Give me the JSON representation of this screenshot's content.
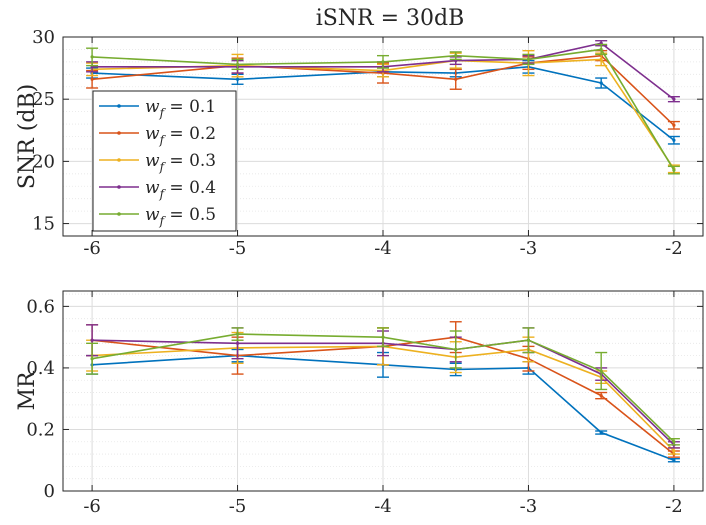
{
  "title": "iSNR = 30dB",
  "colors": [
    "#0072BD",
    "#D95319",
    "#EDB120",
    "#7E2F8E",
    "#77AC30"
  ],
  "chart_data": [
    {
      "type": "line",
      "ylabel": "SNR (dB)",
      "xlabel": "",
      "x": [
        -6,
        -5,
        -4,
        -3.5,
        -3,
        -2.5,
        -2
      ],
      "xticks": [
        -6,
        -5,
        -4,
        -3,
        -2
      ],
      "xtick_labels": [
        "-6",
        "-5",
        "-4",
        "-3",
        "-2"
      ],
      "xlim": [
        -6.2,
        -1.8
      ],
      "ylim": [
        14,
        30
      ],
      "yticks": [
        15,
        20,
        25,
        30
      ],
      "ytick_labels": [
        "15",
        "20",
        "25",
        "30"
      ],
      "grid": true,
      "legend_position": "lower-left",
      "series": [
        {
          "name": "w_f = 0.1",
          "values": [
            27.1,
            26.6,
            27.2,
            27.1,
            27.6,
            26.3,
            21.7
          ],
          "errors": [
            0.4,
            0.4,
            0.4,
            0.3,
            0.5,
            0.4,
            0.3
          ]
        },
        {
          "name": "w_f = 0.2",
          "values": [
            26.6,
            27.7,
            27.1,
            26.6,
            27.9,
            28.5,
            22.9
          ],
          "errors": [
            0.7,
            0.6,
            0.8,
            0.8,
            0.5,
            0.4,
            0.3
          ]
        },
        {
          "name": "w_f = 0.3",
          "values": [
            27.4,
            27.7,
            27.3,
            28.1,
            27.9,
            28.2,
            19.4
          ],
          "errors": [
            0.5,
            0.9,
            0.5,
            0.6,
            1.0,
            0.5,
            0.3
          ]
        },
        {
          "name": "w_f = 0.4",
          "values": [
            27.6,
            27.6,
            27.6,
            28.1,
            28.2,
            29.5,
            25.0
          ],
          "errors": [
            0.4,
            0.5,
            0.4,
            0.3,
            0.3,
            0.2,
            0.2
          ]
        },
        {
          "name": "w_f = 0.5",
          "values": [
            28.4,
            27.8,
            28.0,
            28.5,
            28.2,
            29.0,
            19.3
          ],
          "errors": [
            0.7,
            0.4,
            0.5,
            0.3,
            0.4,
            0.4,
            0.3
          ]
        }
      ],
      "legend": [
        "w",
        "f",
        "= 0.1",
        "= 0.2",
        "= 0.3",
        "= 0.4",
        "= 0.5"
      ]
    },
    {
      "type": "line",
      "ylabel": "MR",
      "xlabel": "",
      "x": [
        -6,
        -5,
        -4,
        -3.5,
        -3,
        -2.5,
        -2
      ],
      "xticks": [
        -6,
        -5,
        -4,
        -3,
        -2
      ],
      "xtick_labels": [
        "-6",
        "-5",
        "-4",
        "-3",
        "-2"
      ],
      "xlim": [
        -6.2,
        -1.8
      ],
      "ylim": [
        0,
        0.65
      ],
      "yticks": [
        0,
        0.2,
        0.4,
        0.6
      ],
      "ytick_labels": [
        "0",
        "0.2",
        "0.4",
        "0.6"
      ],
      "grid": true,
      "series": [
        {
          "name": "w_f = 0.1",
          "values": [
            0.41,
            0.44,
            0.41,
            0.395,
            0.4,
            0.19,
            0.1
          ],
          "errors": [
            0.03,
            0.02,
            0.04,
            0.02,
            0.02,
            0.005,
            0.005
          ]
        },
        {
          "name": "w_f = 0.2",
          "values": [
            0.49,
            0.44,
            0.47,
            0.5,
            0.43,
            0.31,
            0.12
          ],
          "errors": [
            0.05,
            0.06,
            0.06,
            0.05,
            0.04,
            0.01,
            0.01
          ]
        },
        {
          "name": "w_f = 0.3",
          "values": [
            0.44,
            0.465,
            0.47,
            0.435,
            0.46,
            0.37,
            0.13
          ],
          "errors": [
            0.05,
            0.05,
            0.06,
            0.05,
            0.04,
            0.02,
            0.01
          ]
        },
        {
          "name": "w_f = 0.4",
          "values": [
            0.49,
            0.48,
            0.48,
            0.46,
            0.49,
            0.38,
            0.15
          ],
          "errors": [
            0.05,
            0.05,
            0.04,
            0.04,
            0.04,
            0.02,
            0.01
          ]
        },
        {
          "name": "w_f = 0.5",
          "values": [
            0.43,
            0.51,
            0.5,
            0.46,
            0.49,
            0.39,
            0.16
          ],
          "errors": [
            0.05,
            0.02,
            0.03,
            0.06,
            0.04,
            0.06,
            0.01
          ]
        }
      ]
    }
  ]
}
